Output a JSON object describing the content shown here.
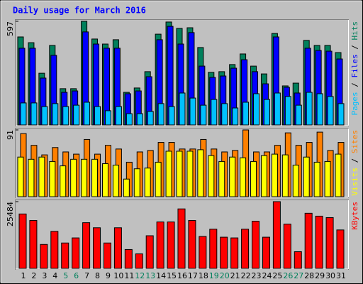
{
  "chart_data": [
    {
      "type": "bar",
      "title": "Daily usage for March 2016",
      "legend_separator": " / ",
      "categories": [
        "1",
        "2",
        "3",
        "4",
        "5",
        "6",
        "7",
        "8",
        "9",
        "10",
        "11",
        "12",
        "13",
        "14",
        "15",
        "16",
        "17",
        "18",
        "19",
        "20",
        "21",
        "22",
        "23",
        "24",
        "25",
        "26",
        "27",
        "28",
        "29",
        "30",
        "31"
      ],
      "category_colors": [
        "#000000",
        "#000000",
        "#000000",
        "#000000",
        "#00805c",
        "#00805c",
        "#000000",
        "#000000",
        "#000000",
        "#000000",
        "#000000",
        "#00805c",
        "#00805c",
        "#000000",
        "#000000",
        "#000000",
        "#000000",
        "#000000",
        "#00805c",
        "#00805c",
        "#000000",
        "#000000",
        "#000000",
        "#000000",
        "#000000",
        "#00805c",
        "#00805c",
        "#000000",
        "#000000",
        "#000000",
        "#000000"
      ],
      "ylim": [
        0,
        597
      ],
      "yticks": [
        597
      ],
      "series": [
        {
          "name": "Hits",
          "color": "#00805c",
          "values": [
            507,
            474,
            298,
            458,
            209,
            209,
            597,
            495,
            466,
            491,
            188,
            213,
            307,
            523,
            593,
            556,
            560,
            446,
            303,
            307,
            348,
            409,
            339,
            294,
            527,
            225,
            241,
            487,
            458,
            458,
            417
          ]
        },
        {
          "name": "Files",
          "color": "#0000ff",
          "values": [
            442,
            442,
            270,
            401,
            188,
            196,
            536,
            466,
            442,
            442,
            180,
            196,
            278,
            491,
            568,
            466,
            532,
            339,
            274,
            282,
            327,
            376,
            307,
            237,
            507,
            217,
            184,
            442,
            429,
            425,
            380
          ]
        },
        {
          "name": "Pages",
          "color": "#00c0ff",
          "values": [
            127,
            127,
            106,
            123,
            106,
            114,
            131,
            106,
            82,
            106,
            65,
            65,
            78,
            123,
            106,
            184,
            155,
            114,
            147,
            123,
            98,
            131,
            180,
            147,
            184,
            164,
            114,
            188,
            180,
            164,
            123
          ]
        }
      ]
    },
    {
      "type": "bar",
      "ylim": [
        0,
        91
      ],
      "yticks": [
        91
      ],
      "series": [
        {
          "name": "Sites",
          "color": "#ff8000",
          "values": [
            86,
            70,
            57,
            67,
            61,
            58,
            78,
            58,
            70,
            65,
            47,
            61,
            63,
            74,
            74,
            65,
            65,
            78,
            65,
            61,
            63,
            91,
            61,
            61,
            70,
            87,
            70,
            74,
            88,
            63,
            74
          ]
        },
        {
          "name": "Visits",
          "color": "#ffff00",
          "values": [
            54,
            51,
            54,
            48,
            42,
            51,
            51,
            51,
            45,
            43,
            24,
            38,
            39,
            47,
            62,
            62,
            62,
            64,
            56,
            48,
            54,
            53,
            48,
            56,
            58,
            57,
            43,
            54,
            47,
            48,
            58
          ]
        }
      ]
    },
    {
      "type": "bar",
      "ylim": [
        0,
        25484
      ],
      "yticks": [
        25484
      ],
      "series": [
        {
          "name": "KBytes",
          "color": "#ff0000",
          "values": [
            20775,
            18282,
            9141,
            14127,
            9695,
            11634,
            17451,
            15512,
            9695,
            15512,
            7202,
            5540,
            12465,
            17728,
            17728,
            22714,
            18282,
            12188,
            14958,
            11911,
            11634,
            14958,
            18005,
            11911,
            25484,
            16897,
            6371,
            21052,
            19944,
            19390,
            14681
          ]
        }
      ]
    }
  ]
}
